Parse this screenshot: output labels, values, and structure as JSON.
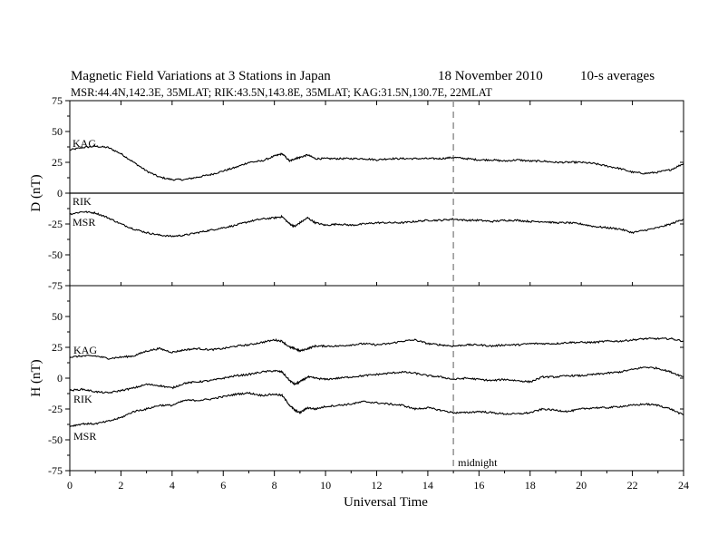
{
  "header": {
    "title_left": "Magnetic Field Variations at 3 Stations in Japan",
    "title_date": "18 November 2010",
    "title_right": "10-s averages",
    "stations_line": "MSR:44.4N,142.3E, 35MLAT;  RIK:43.5N,143.8E, 35MLAT;  KAG:31.5N,130.7E, 22MLAT"
  },
  "chart_data": [
    {
      "type": "line",
      "panel": "D",
      "ylabel": "D (nT)",
      "ylim": [
        -75,
        75
      ],
      "yticks": [
        75,
        50,
        25,
        0,
        -25,
        -50,
        -75
      ],
      "xlim": [
        0,
        24
      ],
      "zero_line": true,
      "series": [
        {
          "name": "KAG",
          "x": [
            0,
            0.5,
            1,
            1.5,
            2,
            2.5,
            3,
            3.5,
            4,
            4.5,
            5,
            5.5,
            6,
            6.5,
            7,
            7.5,
            8,
            8.3,
            8.6,
            8.8,
            9,
            9.3,
            9.6,
            10,
            10.5,
            11,
            11.5,
            12,
            12.5,
            13,
            13.5,
            14,
            14.5,
            15,
            15.5,
            16,
            16.5,
            17,
            17.5,
            18,
            18.5,
            19,
            19.5,
            20,
            20.5,
            21,
            21.5,
            22,
            22.5,
            23,
            23.5,
            24
          ],
          "y": [
            35,
            37,
            38,
            37,
            32,
            25,
            18,
            13,
            11,
            11,
            13,
            15,
            18,
            21,
            25,
            26,
            30,
            32,
            26,
            28,
            29,
            31,
            28,
            28,
            28,
            28,
            28,
            27,
            28,
            28,
            28,
            28,
            28,
            29,
            28,
            27,
            27,
            26,
            27,
            26,
            26,
            25,
            25,
            25,
            24,
            22,
            20,
            17,
            16,
            17,
            19,
            24
          ]
        },
        {
          "name": "RIK",
          "x": [
            0,
            24
          ],
          "y": [
            0,
            0
          ]
        },
        {
          "name": "MSR",
          "x": [
            0,
            0.5,
            1,
            1.5,
            2,
            2.5,
            3,
            3.5,
            4,
            4.5,
            5,
            5.5,
            6,
            6.5,
            7,
            7.5,
            8,
            8.3,
            8.6,
            8.8,
            9,
            9.3,
            9.6,
            10,
            10.5,
            11,
            11.5,
            12,
            12.5,
            13,
            13.5,
            14,
            14.5,
            15,
            15.5,
            16,
            16.5,
            17,
            17.5,
            18,
            18.5,
            19,
            19.5,
            20,
            20.5,
            21,
            21.5,
            22,
            22.5,
            23,
            23.5,
            24
          ],
          "y": [
            -17,
            -15,
            -16,
            -20,
            -25,
            -29,
            -32,
            -34,
            -35,
            -34,
            -32,
            -30,
            -28,
            -26,
            -23,
            -21,
            -20,
            -19,
            -25,
            -27,
            -24,
            -20,
            -24,
            -26,
            -25,
            -26,
            -25,
            -24,
            -24,
            -24,
            -23,
            -22,
            -22,
            -21,
            -22,
            -22,
            -23,
            -22,
            -22,
            -23,
            -23,
            -24,
            -24,
            -25,
            -27,
            -28,
            -29,
            -32,
            -30,
            -28,
            -25,
            -21
          ]
        }
      ],
      "annotations": []
    },
    {
      "type": "line",
      "panel": "H",
      "ylabel": "H (nT)",
      "ylim": [
        -75,
        75
      ],
      "yticks": [
        75,
        50,
        25,
        0,
        -25,
        -50,
        -75
      ],
      "xlim": [
        0,
        24
      ],
      "xticks": [
        0,
        2,
        4,
        6,
        8,
        10,
        12,
        14,
        16,
        18,
        20,
        22,
        24
      ],
      "xlabel": "Universal Time",
      "series": [
        {
          "name": "KAG",
          "x": [
            0,
            0.5,
            1,
            1.5,
            2,
            2.5,
            3,
            3.5,
            4,
            4.5,
            5,
            5.5,
            6,
            6.5,
            7,
            7.5,
            8,
            8.3,
            8.6,
            8.8,
            9,
            9.3,
            9.6,
            10,
            10.5,
            11,
            11.5,
            12,
            12.5,
            13,
            13.5,
            14,
            14.5,
            15,
            15.5,
            16,
            16.5,
            17,
            17.5,
            18,
            18.5,
            19,
            19.5,
            20,
            20.5,
            21,
            21.5,
            22,
            22.5,
            23,
            23.5,
            24
          ],
          "y": [
            17,
            18,
            18,
            16,
            17,
            18,
            22,
            24,
            21,
            23,
            24,
            23,
            24,
            26,
            27,
            29,
            31,
            30,
            25,
            24,
            22,
            24,
            26,
            26,
            26,
            27,
            28,
            27,
            28,
            30,
            31,
            28,
            27,
            26,
            27,
            27,
            26,
            27,
            27,
            28,
            28,
            28,
            29,
            29,
            29,
            30,
            30,
            31,
            32,
            32,
            32,
            30
          ]
        },
        {
          "name": "RIK",
          "x": [
            0,
            0.5,
            1,
            1.5,
            2,
            2.5,
            3,
            3.5,
            4,
            4.5,
            5,
            5.5,
            6,
            6.5,
            7,
            7.5,
            8,
            8.3,
            8.6,
            8.8,
            9,
            9.3,
            9.6,
            10,
            10.5,
            11,
            11.5,
            12,
            12.5,
            13,
            13.5,
            14,
            14.5,
            15,
            15.5,
            16,
            16.5,
            17,
            17.5,
            18,
            18.5,
            19,
            19.5,
            20,
            20.5,
            21,
            21.5,
            22,
            22.5,
            23,
            23.5,
            24
          ],
          "y": [
            -10,
            -9,
            -11,
            -12,
            -10,
            -8,
            -5,
            -6,
            -8,
            -4,
            -3,
            -2,
            0,
            2,
            3,
            5,
            6,
            5,
            -2,
            -5,
            -3,
            1,
            0,
            -1,
            0,
            1,
            2,
            3,
            4,
            5,
            4,
            2,
            1,
            -1,
            0,
            -1,
            -2,
            -1,
            -2,
            -3,
            1,
            1,
            2,
            2,
            3,
            4,
            5,
            7,
            9,
            8,
            5,
            1
          ]
        },
        {
          "name": "MSR",
          "x": [
            0,
            0.5,
            1,
            1.5,
            2,
            2.5,
            3,
            3.5,
            4,
            4.5,
            5,
            5.5,
            6,
            6.5,
            7,
            7.5,
            8,
            8.3,
            8.6,
            8.8,
            9,
            9.3,
            9.6,
            10,
            10.5,
            11,
            11.5,
            12,
            12.5,
            13,
            13.5,
            14,
            14.5,
            15,
            15.5,
            16,
            16.5,
            17,
            17.5,
            18,
            18.5,
            19,
            19.5,
            20,
            20.5,
            21,
            21.5,
            22,
            22.5,
            23,
            23.5,
            24
          ],
          "y": [
            -39,
            -37,
            -37,
            -35,
            -32,
            -27,
            -25,
            -22,
            -22,
            -18,
            -18,
            -17,
            -15,
            -13,
            -12,
            -14,
            -13,
            -14,
            -22,
            -26,
            -28,
            -24,
            -25,
            -23,
            -22,
            -21,
            -19,
            -20,
            -21,
            -22,
            -25,
            -24,
            -26,
            -28,
            -28,
            -27,
            -28,
            -29,
            -29,
            -28,
            -25,
            -26,
            -27,
            -25,
            -24,
            -24,
            -23,
            -22,
            -21,
            -22,
            -25,
            -30
          ]
        }
      ],
      "annotations": [
        {
          "text": "midnight",
          "x": 15
        }
      ]
    }
  ],
  "midnight_ut": 15
}
